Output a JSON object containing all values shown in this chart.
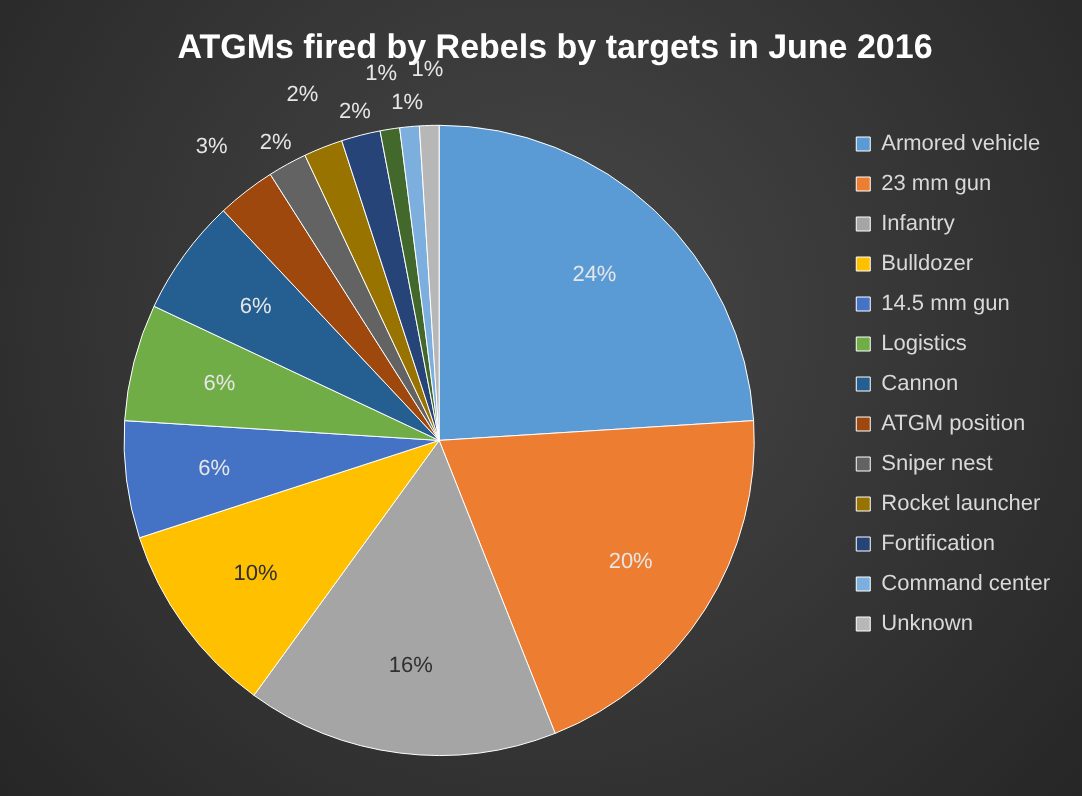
{
  "chart_data": {
    "type": "pie",
    "title": "ATGMs fired by Rebels by targets in June 2016",
    "categories": [
      "Armored vehicle",
      "23 mm gun",
      "Infantry",
      "Bulldozer",
      "14.5 mm gun",
      "Logistics",
      "Cannon",
      "ATGM position",
      "Sniper nest",
      "Rocket launcher",
      "Fortification",
      null,
      "Command center",
      "Unknown"
    ],
    "values": [
      24,
      20,
      16,
      10,
      6,
      6,
      6,
      3,
      2,
      2,
      2,
      1,
      1,
      1
    ],
    "value_labels": [
      "24%",
      "20%",
      "16%",
      "10%",
      "6%",
      "6%",
      "6%",
      "3%",
      "2%",
      "2%",
      "2%",
      "1%",
      "1%",
      "1%"
    ],
    "colors": [
      "#5b9bd5",
      "#ed7d31",
      "#a5a5a5",
      "#ffc000",
      "#4472c4",
      "#70ad47",
      "#255e91",
      "#9e480e",
      "#636363",
      "#997300",
      "#264478",
      "#43682b",
      "#7cafdd",
      "#b7b7b7"
    ],
    "legend": "right"
  }
}
